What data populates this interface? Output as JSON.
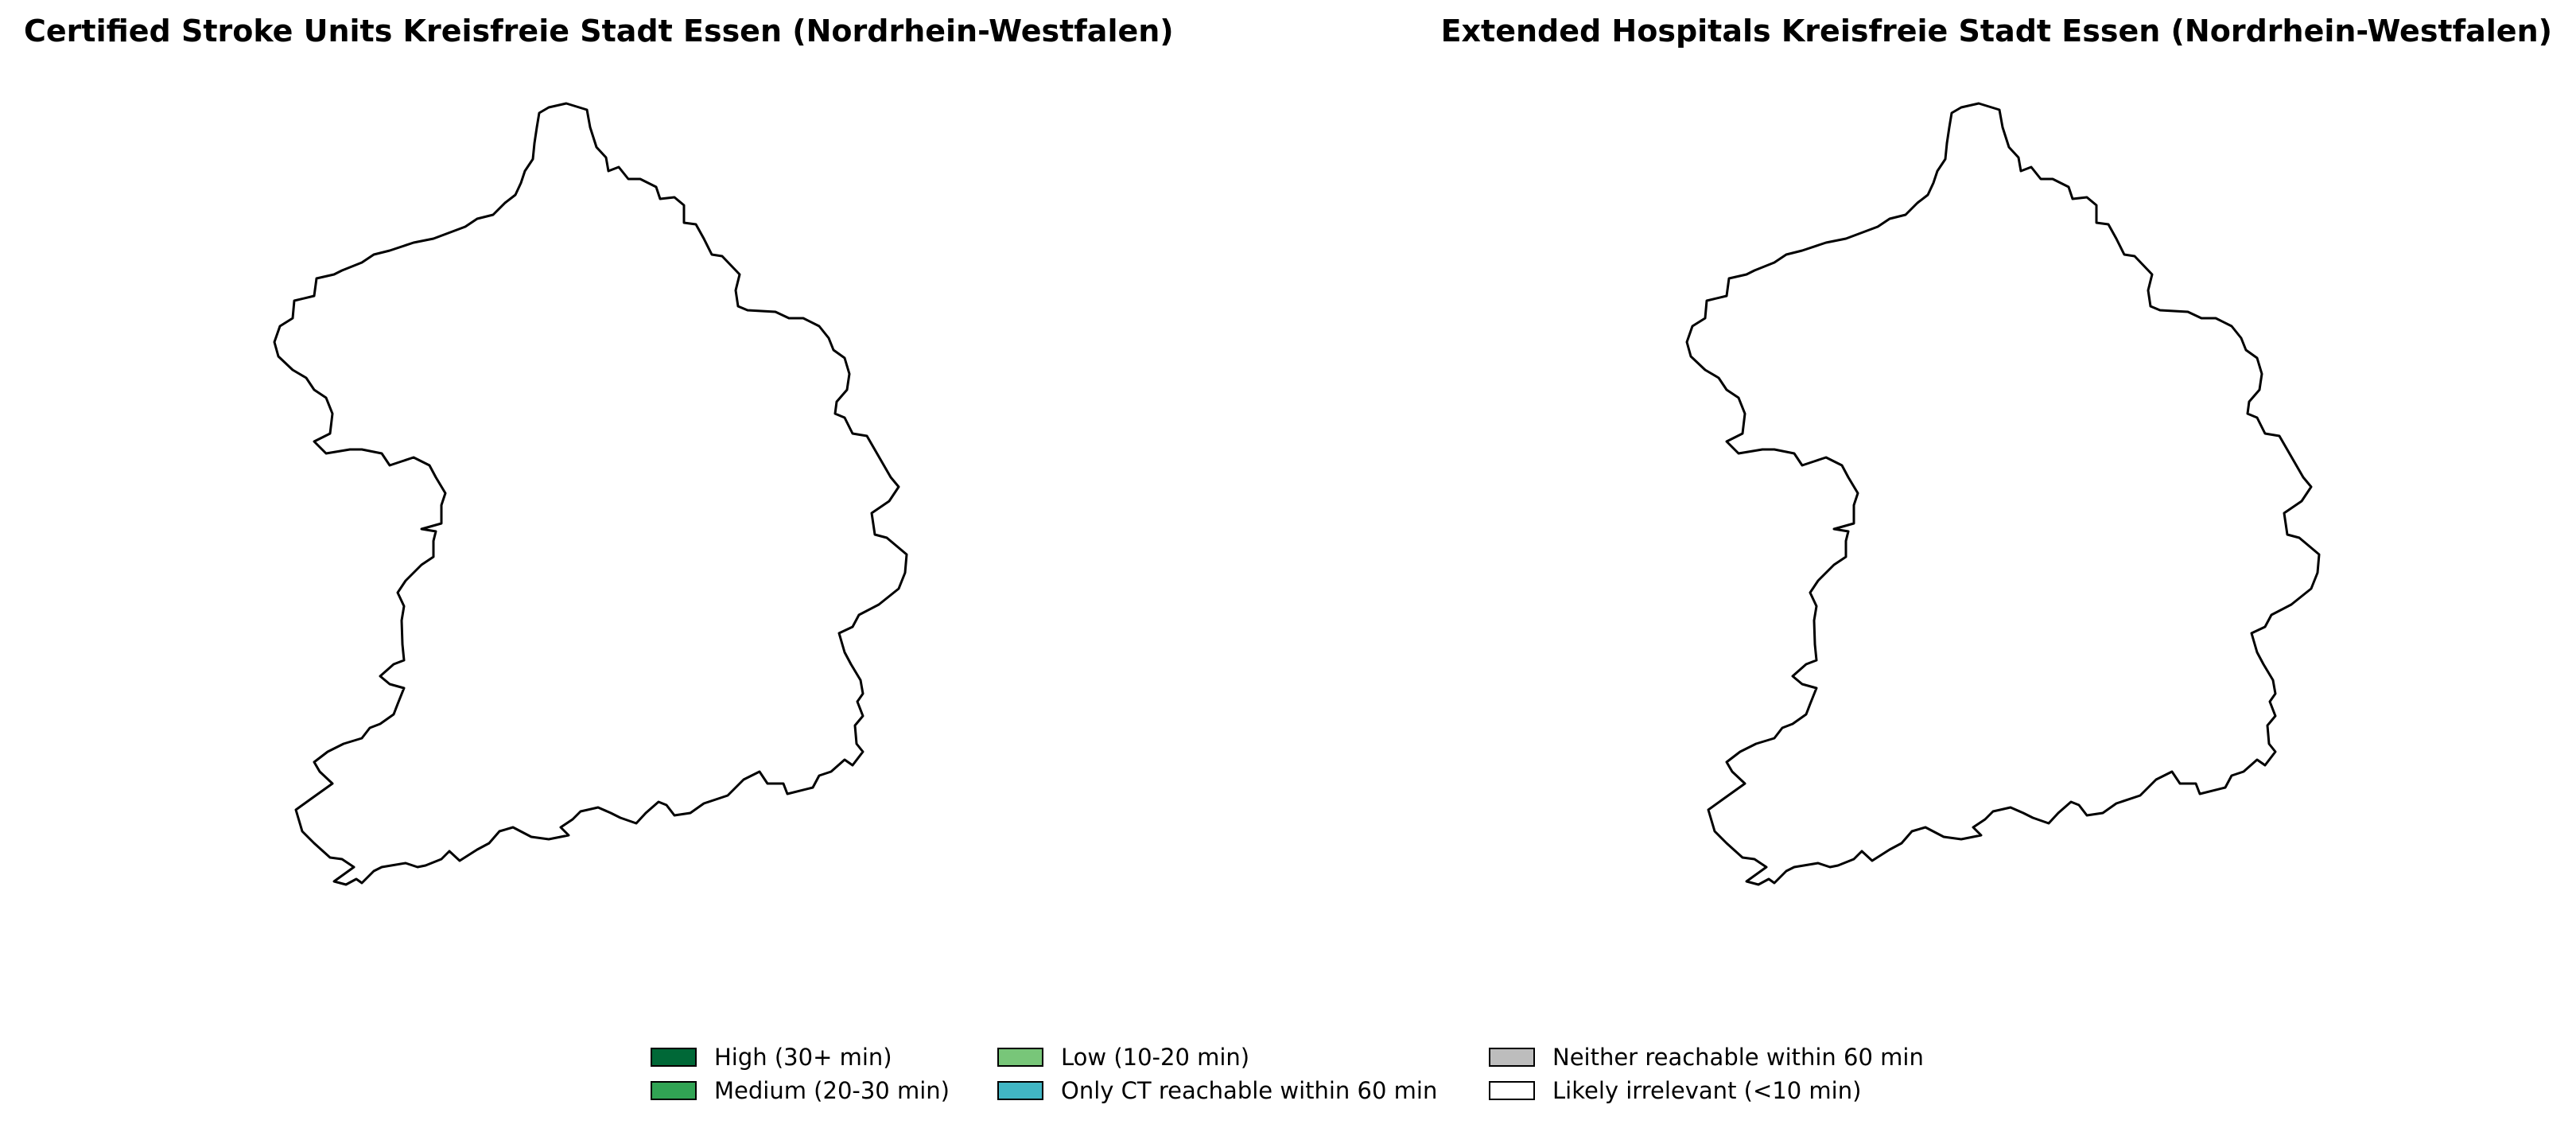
{
  "maps": [
    {
      "title": "Certified Stroke Units Kreisfreie Stadt Essen (Nordrhein-Westfalen)",
      "region_fill": "#ffffff",
      "stroke": "#000000"
    },
    {
      "title": "Extended Hospitals Kreisfreie Stadt Essen (Nordrhein-Westfalen)",
      "region_fill": "#ffffff",
      "stroke": "#000000"
    }
  ],
  "legend": {
    "items": [
      {
        "label": "High (30+ min)",
        "color": "#006837"
      },
      {
        "label": "Medium (20-30 min)",
        "color": "#31a354"
      },
      {
        "label": "Low (10-20 min)",
        "color": "#78c679"
      },
      {
        "label": "Only CT reachable within 60 min",
        "color": "#41b6c4"
      },
      {
        "label": "Neither reachable within 60 min",
        "color": "#bdbdbd"
      },
      {
        "label": "Likely irrelevant (<10 min)",
        "color": "#ffffff"
      }
    ]
  }
}
